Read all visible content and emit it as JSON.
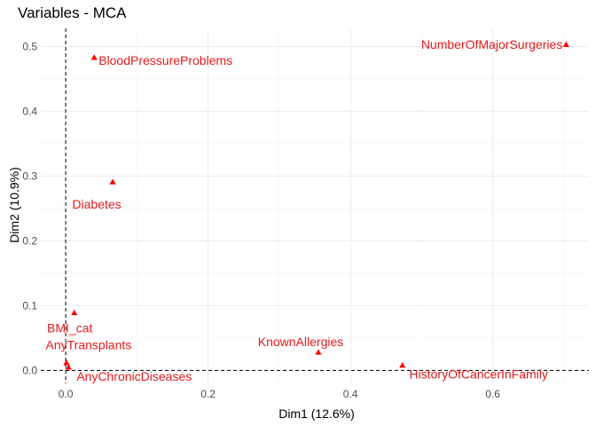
{
  "chart_data": {
    "type": "scatter",
    "title": "Variables - MCA",
    "xlabel": "Dim1 (12.6%)",
    "ylabel": "Dim2 (10.9%)",
    "xlim": [
      -0.035,
      0.735
    ],
    "ylim": [
      -0.02,
      0.528
    ],
    "xticks": [
      0.0,
      0.2,
      0.4,
      0.6
    ],
    "xtick_labels": [
      "0.0",
      "0.2",
      "0.4",
      "0.6"
    ],
    "yticks": [
      0.0,
      0.1,
      0.2,
      0.3,
      0.4,
      0.5
    ],
    "ytick_labels": [
      "0.0",
      "0.1",
      "0.2",
      "0.3",
      "0.4",
      "0.5"
    ],
    "grid": true,
    "reference_lines": {
      "x": 0,
      "y": 0,
      "style": "dashed"
    },
    "marker": "triangle",
    "point_color": "#ff0000",
    "label_color": "#e41a1c",
    "points": [
      {
        "label": "NumberOfMajorSurgeries",
        "x": 0.703,
        "y": 0.503
      },
      {
        "label": "BloodPressureProblems",
        "x": 0.04,
        "y": 0.483
      },
      {
        "label": "Diabetes",
        "x": 0.066,
        "y": 0.291
      },
      {
        "label": "BMI_cat",
        "x": 0.012,
        "y": 0.089
      },
      {
        "label": "AnyTransplants",
        "x": 0.001,
        "y": 0.012
      },
      {
        "label": "AnyChronicDiseases",
        "x": 0.004,
        "y": 0.005
      },
      {
        "label": "KnownAllergies",
        "x": 0.355,
        "y": 0.028
      },
      {
        "label": "HistoryOfCancerInFamily",
        "x": 0.473,
        "y": 0.008
      }
    ]
  }
}
